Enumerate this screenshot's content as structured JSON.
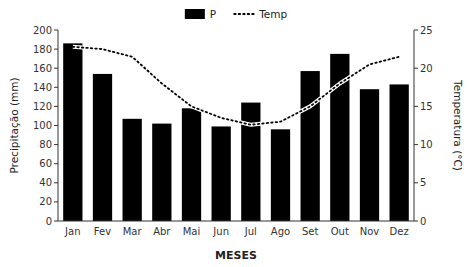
{
  "chart_data": {
    "type": "bar",
    "xlabel": "MESES",
    "ylabel": "Precipitação (mm)",
    "y2label": "Temperatura (°C)",
    "categories": [
      "Jan",
      "Fev",
      "Mar",
      "Abr",
      "Mai",
      "Jun",
      "Jul",
      "Ago",
      "Set",
      "Out",
      "Nov",
      "Dez"
    ],
    "series": [
      {
        "name": "P",
        "type": "bar",
        "color": "#000000",
        "values": [
          186,
          154,
          107,
          102,
          118,
          99,
          124,
          96,
          157,
          175,
          138,
          143
        ]
      },
      {
        "name": "Temp",
        "type": "line",
        "color": "#000000",
        "line_style": "dotted",
        "axis": "y2",
        "values": [
          22.8,
          22.5,
          21.5,
          18.0,
          15.0,
          13.5,
          12.6,
          13.0,
          15.0,
          18.0,
          20.5,
          21.5
        ]
      }
    ],
    "ylim": [
      0,
      200
    ],
    "yticks": [
      0,
      20,
      40,
      60,
      80,
      100,
      120,
      140,
      160,
      180,
      200
    ],
    "y2lim": [
      0,
      25
    ],
    "y2ticks": [
      0,
      5,
      10,
      15,
      20,
      25
    ],
    "grid": false,
    "legend": "top"
  }
}
